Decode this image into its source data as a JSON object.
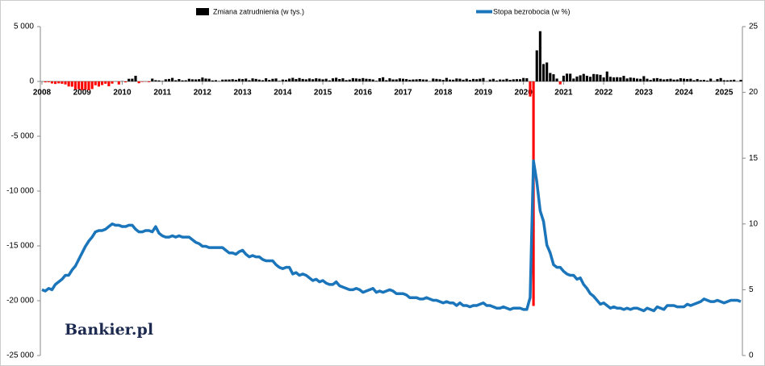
{
  "chart_data": {
    "type": "combo",
    "watermark": "Bankier.pl",
    "categories": [
      "2008",
      null,
      null,
      null,
      null,
      null,
      null,
      null,
      null,
      null,
      null,
      null,
      "2009",
      null,
      null,
      null,
      null,
      null,
      null,
      null,
      null,
      null,
      null,
      null,
      "2010",
      null,
      null,
      null,
      null,
      null,
      null,
      null,
      null,
      null,
      null,
      null,
      "2011",
      null,
      null,
      null,
      null,
      null,
      null,
      null,
      null,
      null,
      null,
      null,
      "2012",
      null,
      null,
      null,
      null,
      null,
      null,
      null,
      null,
      null,
      null,
      null,
      "2013",
      null,
      null,
      null,
      null,
      null,
      null,
      null,
      null,
      null,
      null,
      null,
      "2014",
      null,
      null,
      null,
      null,
      null,
      null,
      null,
      null,
      null,
      null,
      null,
      "2015",
      null,
      null,
      null,
      null,
      null,
      null,
      null,
      null,
      null,
      null,
      null,
      "2016",
      null,
      null,
      null,
      null,
      null,
      null,
      null,
      null,
      null,
      null,
      null,
      "2017",
      null,
      null,
      null,
      null,
      null,
      null,
      null,
      null,
      null,
      null,
      null,
      "2018",
      null,
      null,
      null,
      null,
      null,
      null,
      null,
      null,
      null,
      null,
      null,
      "2019",
      null,
      null,
      null,
      null,
      null,
      null,
      null,
      null,
      null,
      null,
      null,
      "2020",
      null,
      null,
      null,
      null,
      null,
      null,
      null,
      null,
      null,
      null,
      null,
      "2021",
      null,
      null,
      null,
      null,
      null,
      null,
      null,
      null,
      null,
      null,
      null,
      "2022",
      null,
      null,
      null,
      null,
      null,
      null,
      null,
      null,
      null,
      null,
      null,
      "2023",
      null,
      null,
      null,
      null,
      null,
      null,
      null,
      null,
      null,
      null,
      null,
      "2024",
      null,
      null,
      null,
      null,
      null,
      null,
      null,
      null,
      null,
      null,
      null,
      "2025",
      null,
      null,
      null,
      null,
      null
    ],
    "series": [
      {
        "name": "Zmiana zatrudnienia (w tys.)",
        "type": "bar",
        "color": "#000000",
        "negative_color": "#ff0000",
        "values": [
          -1,
          -83,
          -72,
          -185,
          -233,
          -178,
          -212,
          -274,
          -461,
          -481,
          -729,
          -706,
          -784,
          -743,
          -800,
          -695,
          -351,
          -470,
          -329,
          -212,
          -442,
          -200,
          -5,
          -279,
          19,
          -85,
          241,
          251,
          516,
          -167,
          -45,
          -19,
          -66,
          257,
          111,
          91,
          44,
          193,
          228,
          322,
          106,
          217,
          96,
          105,
          241,
          194,
          184,
          209,
          355,
          262,
          245,
          90,
          113,
          36,
          166,
          172,
          177,
          205,
          152,
          245,
          213,
          262,
          110,
          278,
          232,
          165,
          110,
          286,
          134,
          239,
          271,
          53,
          175,
          151,
          256,
          328,
          216,
          310,
          228,
          190,
          269,
          203,
          285,
          247,
          193,
          245,
          96,
          282,
          336,
          224,
          285,
          118,
          169,
          301,
          267,
          239,
          305,
          244,
          230,
          181,
          57,
          295,
          381,
          110,
          285,
          183,
          186,
          278,
          245,
          216,
          153,
          180,
          192,
          221,
          181,
          172,
          30,
          265,
          230,
          201,
          144,
          319,
          169,
          160,
          269,
          245,
          156,
          246,
          134,
          232,
          203,
          245,
          310,
          24,
          173,
          241,
          82,
          179,
          165,
          241,
          145,
          194,
          209,
          202,
          315,
          289,
          -1373,
          -20477,
          2833,
          4581,
          1585,
          1727,
          773,
          654,
          260,
          -268,
          520,
          710,
          704,
          263,
          447,
          557,
          689,
          517,
          424,
          677,
          647,
          600,
          364,
          904,
          422,
          365,
          387,
          370,
          505,
          270,
          352,
          319,
          259,
          239,
          482,
          248,
          146,
          278,
          303,
          240,
          184,
          210,
          246,
          165,
          182,
          290,
          256,
          222,
          246,
          108,
          218,
          118,
          144,
          78,
          255,
          43,
          212,
          307,
          111,
          102,
          120,
          158,
          19,
          147
        ]
      },
      {
        "name": "Stopa bezrobocia (w %)",
        "type": "line",
        "axis": "y2",
        "color": "#1b75bb",
        "values": [
          5.0,
          4.9,
          5.1,
          5.0,
          5.4,
          5.6,
          5.8,
          6.1,
          6.1,
          6.5,
          6.8,
          7.3,
          7.8,
          8.3,
          8.7,
          9.0,
          9.4,
          9.5,
          9.5,
          9.6,
          9.8,
          10.0,
          9.9,
          9.9,
          9.8,
          9.8,
          9.9,
          9.9,
          9.6,
          9.4,
          9.4,
          9.5,
          9.5,
          9.4,
          9.8,
          9.3,
          9.1,
          9.0,
          9.0,
          9.1,
          9.0,
          9.1,
          9.0,
          9.0,
          9.0,
          8.8,
          8.6,
          8.5,
          8.3,
          8.3,
          8.2,
          8.2,
          8.2,
          8.2,
          8.2,
          8.0,
          7.8,
          7.8,
          7.7,
          7.9,
          8.0,
          7.7,
          7.5,
          7.6,
          7.5,
          7.5,
          7.3,
          7.2,
          7.2,
          7.2,
          6.9,
          6.7,
          6.6,
          6.7,
          6.7,
          6.2,
          6.3,
          6.1,
          6.2,
          6.1,
          5.9,
          5.7,
          5.8,
          5.6,
          5.7,
          5.5,
          5.4,
          5.4,
          5.6,
          5.3,
          5.2,
          5.1,
          5.0,
          5.0,
          5.1,
          5.0,
          4.8,
          4.9,
          5.0,
          5.1,
          4.8,
          4.9,
          4.8,
          4.9,
          5.0,
          4.9,
          4.7,
          4.7,
          4.7,
          4.6,
          4.4,
          4.4,
          4.4,
          4.3,
          4.3,
          4.4,
          4.3,
          4.2,
          4.2,
          4.1,
          4.0,
          4.1,
          4.0,
          4.0,
          3.8,
          4.0,
          3.8,
          3.8,
          3.7,
          3.8,
          3.8,
          3.9,
          4.0,
          3.8,
          3.8,
          3.7,
          3.6,
          3.6,
          3.7,
          3.6,
          3.5,
          3.6,
          3.6,
          3.6,
          3.5,
          3.5,
          4.4,
          14.8,
          13.2,
          11.0,
          10.2,
          8.4,
          7.8,
          6.9,
          6.7,
          6.7,
          6.4,
          6.2,
          6.1,
          6.1,
          5.8,
          5.9,
          5.4,
          5.1,
          4.7,
          4.5,
          4.2,
          3.9,
          4.0,
          3.8,
          3.6,
          3.7,
          3.6,
          3.6,
          3.5,
          3.6,
          3.5,
          3.6,
          3.6,
          3.5,
          3.4,
          3.6,
          3.5,
          3.4,
          3.7,
          3.6,
          3.5,
          3.8,
          3.8,
          3.8,
          3.7,
          3.7,
          3.7,
          3.9,
          3.8,
          3.9,
          4.0,
          4.1,
          4.3,
          4.2,
          4.1,
          4.1,
          4.2,
          4.1,
          4.0,
          4.1,
          4.2,
          4.2,
          4.2,
          4.1
        ]
      }
    ],
    "ylim": [
      -25000,
      5000
    ],
    "yticks": [
      {
        "value": -25000,
        "label": "-25 000"
      },
      {
        "value": -20000,
        "label": "-20 000"
      },
      {
        "value": -15000,
        "label": "-15 000"
      },
      {
        "value": -10000,
        "label": "-10 000"
      },
      {
        "value": -5000,
        "label": "-5 000"
      },
      0,
      {
        "value": 5000,
        "label": "5 000"
      }
    ],
    "y2lim": [
      0,
      25
    ],
    "y2ticks": [
      0,
      5,
      10,
      15,
      20,
      25
    ],
    "grid": false
  }
}
